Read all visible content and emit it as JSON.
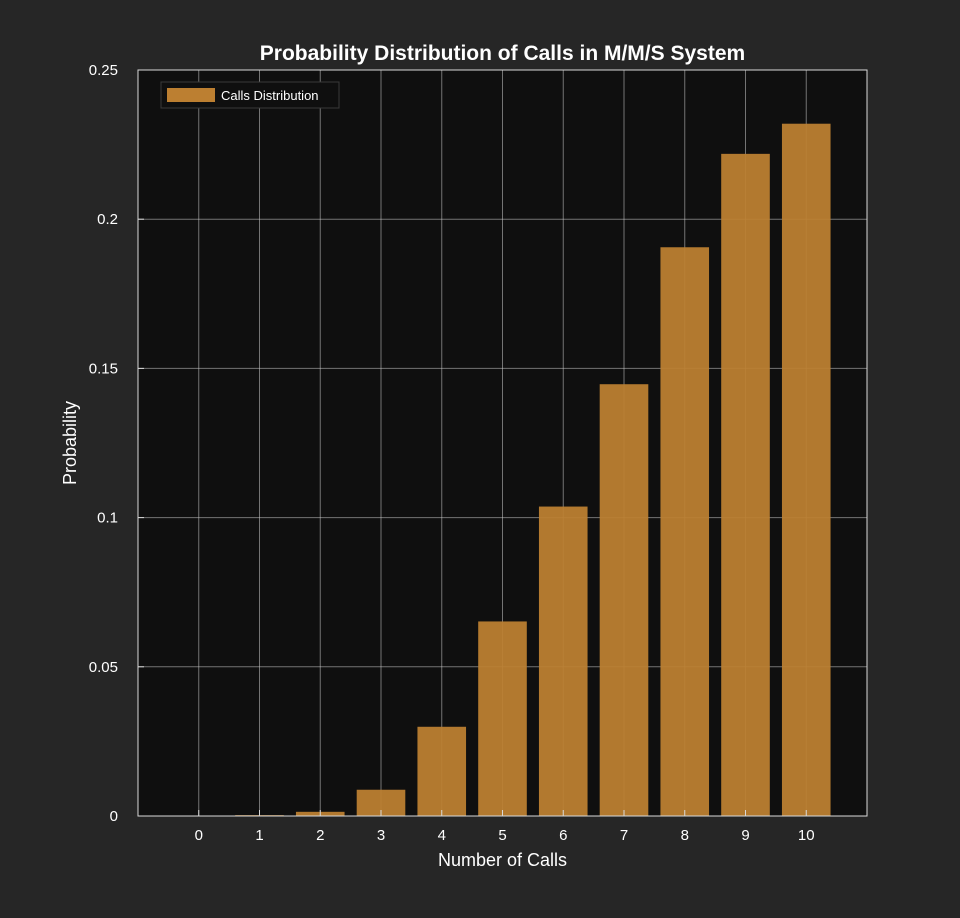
{
  "chart_data": {
    "type": "bar",
    "title": "Probability Distribution of Calls in M/M/S System",
    "xlabel": "Number of Calls",
    "ylabel": "Probability",
    "categories": [
      "0",
      "1",
      "2",
      "3",
      "4",
      "5",
      "6",
      "7",
      "8",
      "9",
      "10"
    ],
    "series": [
      {
        "name": "Calls Distribution",
        "values": [
          0.0001,
          0.0003,
          0.0014,
          0.0088,
          0.0299,
          0.0652,
          0.1037,
          0.1447,
          0.1906,
          0.2219,
          0.232
        ]
      }
    ],
    "xlim": [
      -1,
      11
    ],
    "ylim": [
      0,
      0.25
    ],
    "yticks": [
      0,
      0.05,
      0.1,
      0.15,
      0.2,
      0.25
    ],
    "ytick_labels": [
      "0",
      "0.05",
      "0.1",
      "0.15",
      "0.2",
      "0.25"
    ],
    "grid": true,
    "legend_position": "top-left",
    "colors": {
      "figure_background": "#262626",
      "axes_background": "#0f0f0f",
      "bar_fill": "#bc7f31",
      "axes_edge": "#d9d9d9",
      "grid": "#c8c8c8",
      "text": "#ffffff"
    }
  }
}
